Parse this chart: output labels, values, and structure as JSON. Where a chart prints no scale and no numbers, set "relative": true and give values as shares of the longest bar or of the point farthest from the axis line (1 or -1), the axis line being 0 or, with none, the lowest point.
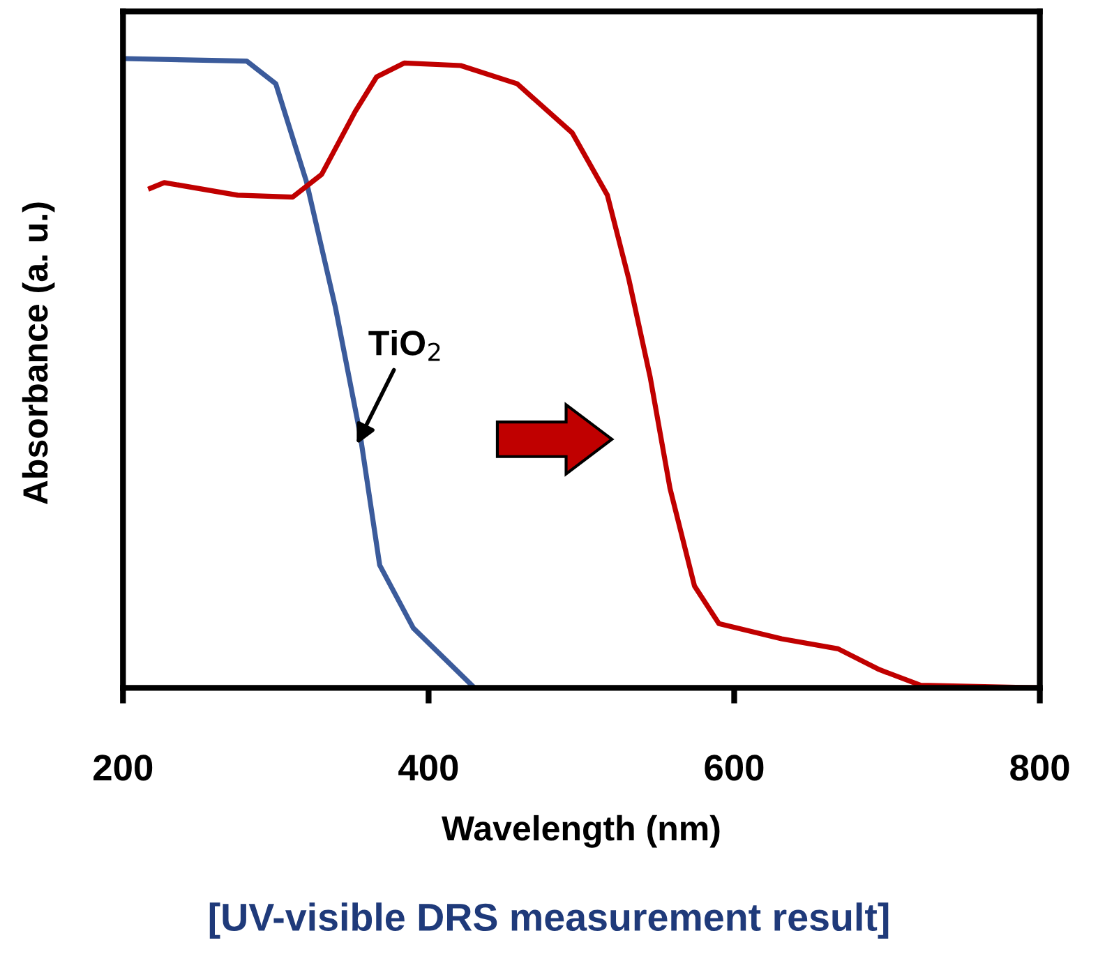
{
  "chart_data": {
    "type": "line",
    "relative": true,
    "xlabel": "Wavelength (nm)",
    "ylabel": "Absorbance (a. u.)",
    "xlim": [
      200,
      800
    ],
    "xticks": [
      200,
      400,
      600,
      800
    ],
    "grid": false,
    "marker": "none",
    "line_style": "solid",
    "series": [
      {
        "color": "#3b5b9b",
        "x": [
          202,
          281,
          300,
          320,
          339,
          355,
          368,
          390,
          430
        ],
        "values": [
          1.0,
          0.996,
          0.96,
          0.805,
          0.605,
          0.406,
          0.195,
          0.095,
          0.0
        ]
      },
      {
        "color": "#c00000",
        "x": [
          218,
          227,
          275,
          311,
          330,
          352,
          366,
          384,
          421,
          458,
          494,
          517,
          531,
          545,
          558,
          574,
          590,
          631,
          668,
          695,
          722,
          800
        ],
        "values": [
          0.794,
          0.803,
          0.783,
          0.78,
          0.816,
          0.916,
          0.971,
          0.993,
          0.989,
          0.96,
          0.882,
          0.783,
          0.65,
          0.494,
          0.317,
          0.162,
          0.102,
          0.078,
          0.062,
          0.029,
          0.004,
          0.0
        ]
      }
    ],
    "annotations": [
      {
        "text": "TiO$_{2}$",
        "x": 353,
        "y": 0.387
      },
      "[UV-visible DRS measurement result]"
    ]
  }
}
